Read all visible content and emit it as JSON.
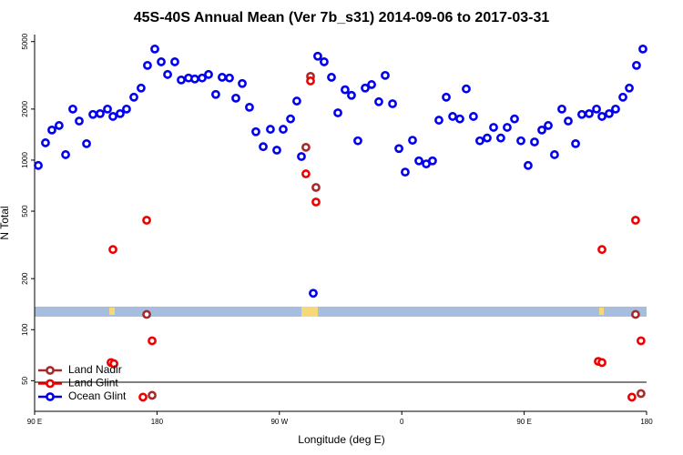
{
  "chart_data": {
    "type": "scatter",
    "title": "45S-40S Annual Mean (Ver 7b_s31)   2014-09-06 to 2017-03-31",
    "x_label": "Longitude (deg E)",
    "y_label": "N Total",
    "xlim": [
      90,
      540
    ],
    "ylim": [
      33,
      5500
    ],
    "log_y": true,
    "xticks": [
      {
        "value": 90,
        "label": "90 E"
      },
      {
        "value": 180,
        "label": "180"
      },
      {
        "value": 270,
        "label": "90 W"
      },
      {
        "value": 360,
        "label": "0"
      },
      {
        "value": 450,
        "label": "90 E"
      },
      {
        "value": 540,
        "label": "180"
      }
    ],
    "yticks": [
      50,
      100,
      200,
      500,
      1000,
      2000,
      5000
    ],
    "legend": "bottom-left",
    "series": [
      {
        "name": "Land Nadir",
        "color": "#a52a2a",
        "x": [
          172.4,
          176.4,
          289.5,
          292.9,
          296.9,
          531.9,
          535.9
        ],
        "values": [
          123,
          41,
          1190,
          3120,
          690,
          123,
          42
        ]
      },
      {
        "name": "Land Glint",
        "color": "#ee0000",
        "x": [
          147.6,
          172.4,
          146.2,
          148.3,
          176.4,
          169.7,
          289.5,
          292.9,
          296.9,
          507.2,
          531.9,
          504.5,
          507.2,
          535.9,
          529.2
        ],
        "values": [
          297,
          442,
          64,
          63,
          86,
          40,
          830,
          2930,
          566,
          297,
          442,
          65,
          64,
          86,
          40
        ]
      },
      {
        "name": "Ocean Glint",
        "color": "#0000ee",
        "x": [
          92.7,
          98,
          102.7,
          108,
          112.8,
          118.1,
          122.8,
          128.2,
          132.9,
          138.2,
          143.6,
          147.6,
          152.9,
          157.6,
          163,
          168.3,
          173,
          178.4,
          183.1,
          187.8,
          193.1,
          197.8,
          203.2,
          207.8,
          213.2,
          217.9,
          223.2,
          227.9,
          233.3,
          238,
          242.7,
          248,
          252.7,
          258.1,
          263.4,
          268.1,
          272.8,
          278.2,
          282.8,
          286.2,
          294.9,
          298.2,
          302.9,
          308.3,
          313,
          318.3,
          323,
          327.7,
          333.1,
          337.8,
          343.1,
          347.8,
          353.2,
          357.9,
          362.5,
          367.9,
          372.6,
          378,
          382.6,
          387.3,
          392.7,
          397.4,
          402.7,
          407.4,
          412.7,
          417.4,
          422.8,
          427.5,
          432.8,
          437.5,
          442.9,
          447.6,
          452.9,
          457.6,
          463,
          467.7,
          472.3,
          477.7,
          482.4,
          487.8,
          492.4,
          497.8,
          503.2,
          507.2,
          512.5,
          517.2,
          522.6,
          527.3,
          532.6,
          537.3
        ],
        "values": [
          930,
          1265,
          1505,
          1600,
          1077,
          2000,
          1700,
          1250,
          1860,
          1880,
          2000,
          1810,
          1880,
          2000,
          2350,
          2660,
          3620,
          4520,
          3800,
          3200,
          3800,
          2970,
          3050,
          3010,
          3050,
          3200,
          2440,
          3080,
          3050,
          2320,
          2830,
          2050,
          1470,
          1200,
          1520,
          1145,
          1520,
          1750,
          2230,
          1050,
          164,
          4100,
          3800,
          3080,
          1900,
          2600,
          2410,
          1300,
          2660,
          2790,
          2210,
          3160,
          2150,
          1170,
          850,
          1310,
          990,
          950,
          990,
          1720,
          2350,
          1810,
          1750,
          2630,
          1810,
          1300,
          1350,
          1560,
          1350,
          1560,
          1750,
          1300,
          930,
          1280,
          1505,
          1600,
          1077,
          2000,
          1700,
          1250,
          1860,
          1880,
          2000,
          1810,
          1880,
          2000,
          2350,
          2660,
          3620,
          4520
        ]
      }
    ]
  }
}
